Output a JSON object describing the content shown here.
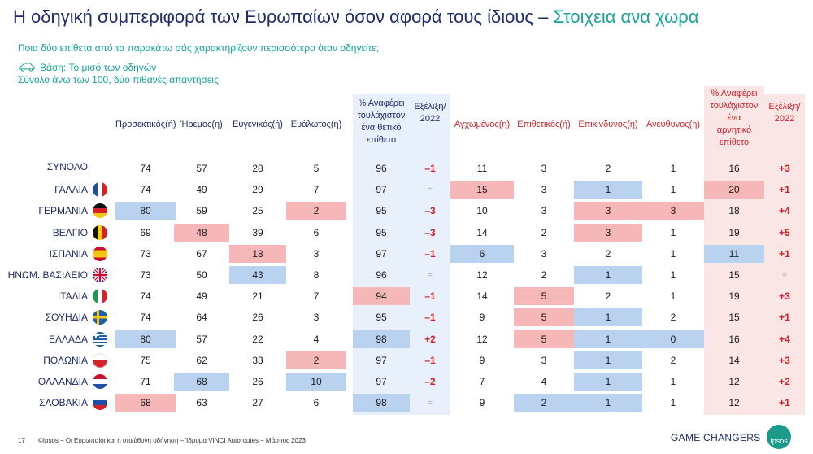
{
  "title": {
    "main": "Η οδηγική συμπεριφορά των Ευρωπαίων όσον αφορά τους ίδιους",
    "dash": " – ",
    "accent": "Στοιχεια ανα χωρα"
  },
  "question": "Ποια δύο επίθετα από τα παρακάτω σάς χαρακτηρίζουν περισσότερο όταν οδηγείτε;",
  "base": {
    "line1": "Βάση: Το μισό των οδηγών",
    "line2": "Σύνολο άνω των 100, δύο  πιθανές απαντήσεις"
  },
  "columns": [
    {
      "label": "Προσεκτικός(ή)",
      "kind": "pos"
    },
    {
      "label": "Ήρεμος(η)",
      "kind": "pos"
    },
    {
      "label": "Ευγενικός(ή)",
      "kind": "pos"
    },
    {
      "label": "Ευάλωτος(η)",
      "kind": "pos"
    },
    {
      "label": "% Αναφέρει\nτουλάχιστον\nένα θετικό\nεπίθετο",
      "kind": "pos"
    },
    {
      "label": "Εξέλιξη/\n2022",
      "kind": "pos"
    },
    {
      "label": "Αγχωμένος(η)",
      "kind": "neg"
    },
    {
      "label": "Επιθετικός(ή)",
      "kind": "neg"
    },
    {
      "label": "Επικίνδυνος(η)",
      "kind": "neg"
    },
    {
      "label": "Ανεύθυνος(η)",
      "kind": "neg"
    },
    {
      "label": "% Αναφέρει\nτουλάχιστον\nένα\nαρνητικό\nεπίθετο",
      "kind": "neg"
    },
    {
      "label": "Εξέλιξη/\n2022",
      "kind": "neg"
    }
  ],
  "rows": [
    {
      "country": "ΣΥΝΟΛΟ",
      "flag": "none",
      "values": [
        "74",
        "57",
        "28",
        "5",
        "96",
        "–1",
        "11",
        "3",
        "2",
        "1",
        "16",
        "+3"
      ],
      "hl": {}
    },
    {
      "country": "ΓΑΛΛΙΑ",
      "flag": "fr",
      "values": [
        "74",
        "49",
        "29",
        "7",
        "97",
        "=",
        "15",
        "3",
        "1",
        "1",
        "20",
        "+1"
      ],
      "hl": {
        "6": "pink",
        "8": "blue",
        "10": "pink"
      }
    },
    {
      "country": "ΓΕΡΜΑΝΙΑ",
      "flag": "de",
      "values": [
        "80",
        "59",
        "25",
        "2",
        "95",
        "–3",
        "10",
        "3",
        "3",
        "3",
        "18",
        "+4"
      ],
      "hl": {
        "0": "blue",
        "3": "pink",
        "8": "pink",
        "9": "pink"
      }
    },
    {
      "country": "ΒΕΛΓΙΟ",
      "flag": "be",
      "values": [
        "69",
        "48",
        "39",
        "6",
        "95",
        "–3",
        "14",
        "2",
        "3",
        "1",
        "19",
        "+5"
      ],
      "hl": {
        "1": "pink",
        "8": "pink"
      }
    },
    {
      "country": "ΙΣΠΑΝΙΑ",
      "flag": "es",
      "values": [
        "73",
        "67",
        "18",
        "3",
        "97",
        "–1",
        "6",
        "3",
        "2",
        "1",
        "11",
        "+1"
      ],
      "hl": {
        "2": "pink",
        "6": "blue",
        "10": "blue"
      }
    },
    {
      "country": "ΗΝΩΜ. ΒΑΣΙΛΕΙΟ",
      "flag": "uk",
      "values": [
        "73",
        "50",
        "43",
        "8",
        "96",
        "=",
        "12",
        "2",
        "1",
        "1",
        "15",
        "="
      ],
      "hl": {
        "2": "blue",
        "8": "blue"
      }
    },
    {
      "country": "ΙΤΑΛΙΑ",
      "flag": "it",
      "values": [
        "74",
        "49",
        "21",
        "7",
        "94",
        "–1",
        "14",
        "5",
        "2",
        "1",
        "19",
        "+3"
      ],
      "hl": {
        "4": "pink",
        "7": "pink"
      }
    },
    {
      "country": "ΣΟΥΗΔΙΑ",
      "flag": "se",
      "values": [
        "74",
        "64",
        "26",
        "3",
        "95",
        "–1",
        "9",
        "5",
        "1",
        "2",
        "15",
        "+1"
      ],
      "hl": {
        "7": "pink",
        "8": "blue"
      }
    },
    {
      "country": "ΕΛΛΑΔΑ",
      "flag": "gr",
      "values": [
        "80",
        "57",
        "22",
        "4",
        "98",
        "+2",
        "12",
        "5",
        "1",
        "0",
        "16",
        "+4"
      ],
      "hl": {
        "0": "blue",
        "4": "blue",
        "7": "pink",
        "8": "blue",
        "9": "blue"
      }
    },
    {
      "country": "ΠΟΛΩΝΙΑ",
      "flag": "pl",
      "values": [
        "75",
        "62",
        "33",
        "2",
        "97",
        "–1",
        "9",
        "3",
        "1",
        "2",
        "14",
        "+3"
      ],
      "hl": {
        "3": "pink",
        "8": "blue"
      }
    },
    {
      "country": "ΟΛΛΑΝΔΙΑ",
      "flag": "nl",
      "values": [
        "71",
        "68",
        "26",
        "10",
        "97",
        "–2",
        "7",
        "4",
        "1",
        "1",
        "12",
        "+2"
      ],
      "hl": {
        "1": "blue",
        "3": "blue",
        "8": "blue"
      }
    },
    {
      "country": "ΣΛΟΒΑΚΙΑ",
      "flag": "sk",
      "values": [
        "68",
        "63",
        "27",
        "6",
        "98",
        "=",
        "9",
        "2",
        "1",
        "1",
        "12",
        "+1"
      ],
      "hl": {
        "0": "pink",
        "4": "blue",
        "7": "blue",
        "8": "blue"
      }
    }
  ],
  "footer": {
    "page": "17",
    "source": "©Ipsos – Οι Ευρωπαίοι και η υπεύθυνη οδήγηση – Ίδρυμα VINCI Autoroutes – Μάρτιος  2023"
  },
  "brand": "GAME CHANGERS",
  "logo": "Ipsos",
  "colors": {
    "navy": "#1f2b6b",
    "teal": "#16a39a",
    "red": "#d2232a",
    "hl_blue": "#b8d2f0",
    "hl_pink": "#f6b7b9"
  }
}
